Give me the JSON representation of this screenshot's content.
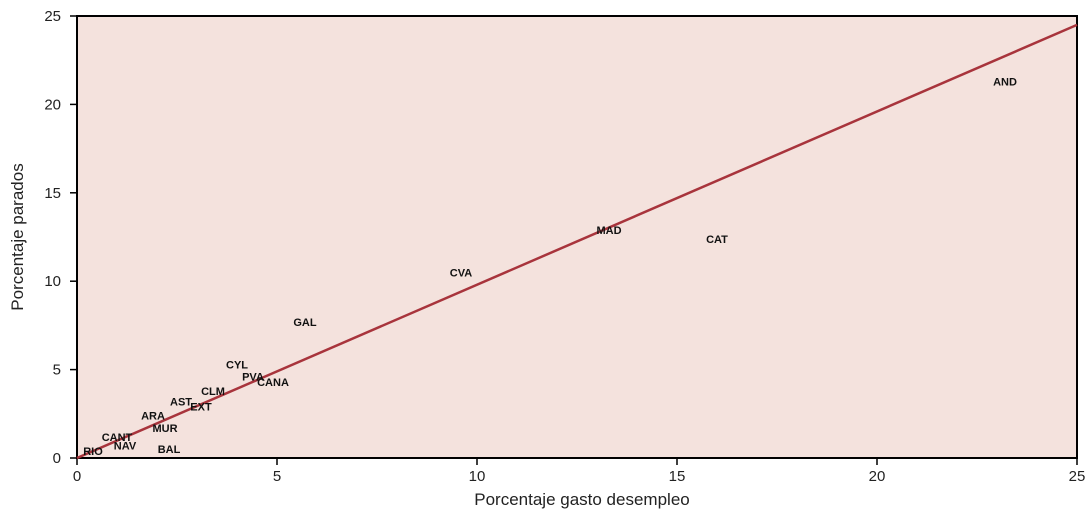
{
  "chart_data": {
    "type": "scatter",
    "title": "",
    "xlabel": "Porcentaje gasto desempleo",
    "ylabel": "Porcentaje parados",
    "xlim": [
      0,
      25
    ],
    "ylim": [
      0,
      25
    ],
    "x_ticks": [
      0,
      5,
      10,
      15,
      20,
      25
    ],
    "y_ticks": [
      0,
      5,
      10,
      15,
      20,
      25
    ],
    "grid": false,
    "colors": {
      "plot_background": "#f4e2dd",
      "fit_line": "#a8343c",
      "axis": "#000000"
    },
    "fit_line": {
      "x": [
        0,
        25
      ],
      "y": [
        0,
        24.5
      ]
    },
    "points": [
      {
        "label": "AND",
        "x": 23.2,
        "y": 21.3
      },
      {
        "label": "MAD",
        "x": 13.3,
        "y": 12.9
      },
      {
        "label": "CAT",
        "x": 16.0,
        "y": 12.4
      },
      {
        "label": "CVA",
        "x": 9.6,
        "y": 10.5
      },
      {
        "label": "GAL",
        "x": 5.7,
        "y": 7.7
      },
      {
        "label": "CYL",
        "x": 4.0,
        "y": 5.3
      },
      {
        "label": "PVA",
        "x": 4.4,
        "y": 4.6
      },
      {
        "label": "CANA",
        "x": 4.9,
        "y": 4.3
      },
      {
        "label": "CLM",
        "x": 3.4,
        "y": 3.8
      },
      {
        "label": "AST",
        "x": 2.6,
        "y": 3.2
      },
      {
        "label": "EXT",
        "x": 3.1,
        "y": 2.9
      },
      {
        "label": "ARA",
        "x": 1.9,
        "y": 2.4
      },
      {
        "label": "MUR",
        "x": 2.2,
        "y": 1.7
      },
      {
        "label": "CANT",
        "x": 1.0,
        "y": 1.2
      },
      {
        "label": "NAV",
        "x": 1.2,
        "y": 0.7
      },
      {
        "label": "BAL",
        "x": 2.3,
        "y": 0.5
      },
      {
        "label": "RIO",
        "x": 0.4,
        "y": 0.4
      }
    ]
  }
}
